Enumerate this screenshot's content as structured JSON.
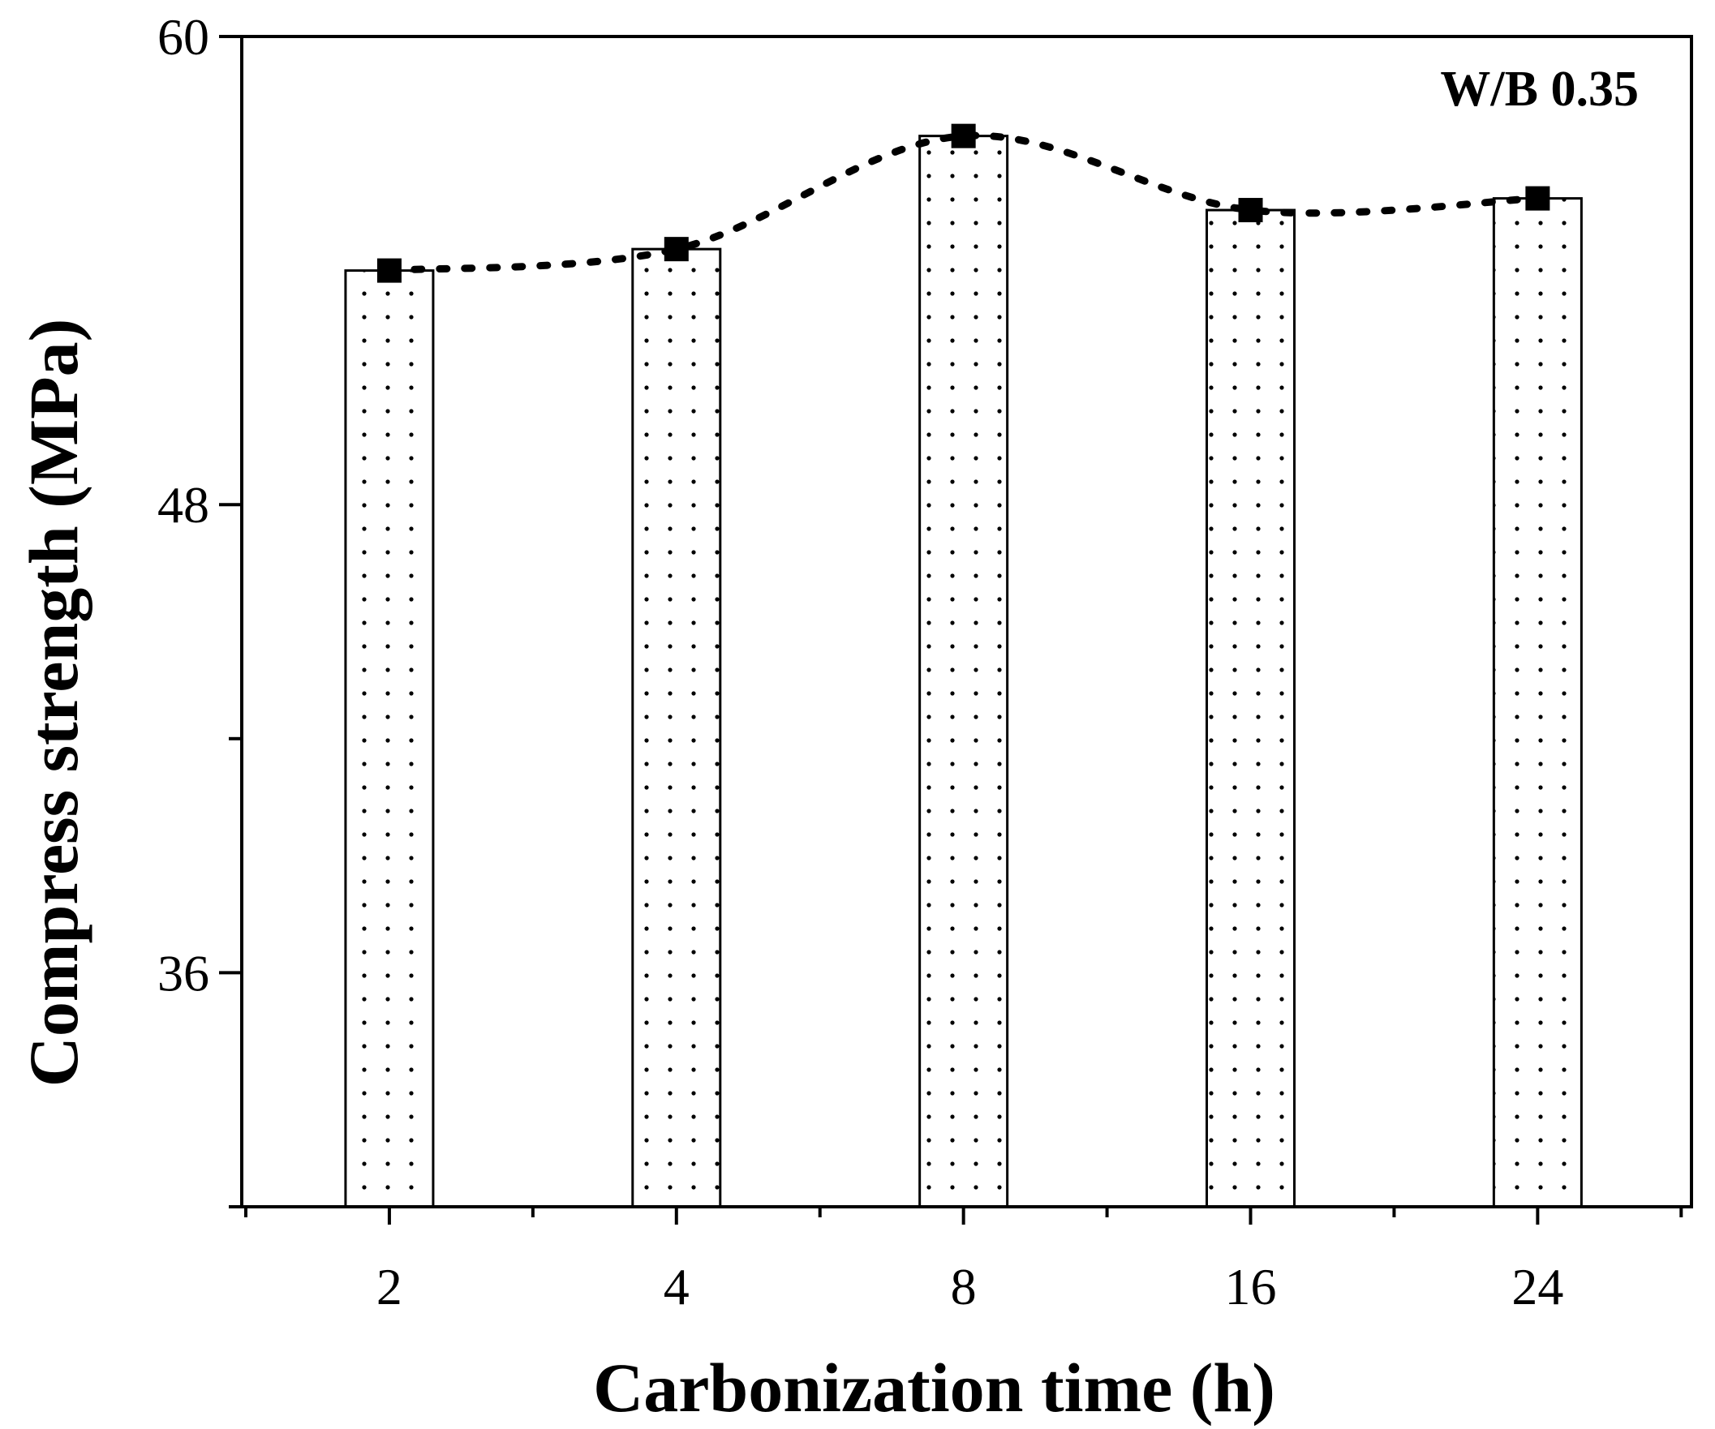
{
  "chart_data": {
    "type": "bar",
    "title": "",
    "xlabel": "Carbonization time (h)",
    "ylabel": "Compress strength (MPa)",
    "categories": [
      "2",
      "4",
      "8",
      "16",
      "24"
    ],
    "values": [
      54.0,
      54.55,
      57.45,
      55.55,
      55.85
    ],
    "line_series": {
      "name": "Compress strength",
      "values": [
        54.0,
        54.55,
        57.45,
        55.55,
        55.85
      ],
      "style": "dotted",
      "marker": "square"
    },
    "ylim": [
      30,
      60
    ],
    "yticks": [
      36,
      48,
      60
    ],
    "yticks_minor": [
      42
    ],
    "annotation": "W/B 0.35",
    "bar_fill": "dotted pattern",
    "colors": {
      "bar_stroke": "#000000",
      "marker": "#000000",
      "line": "#000000",
      "background": "#ffffff"
    }
  }
}
